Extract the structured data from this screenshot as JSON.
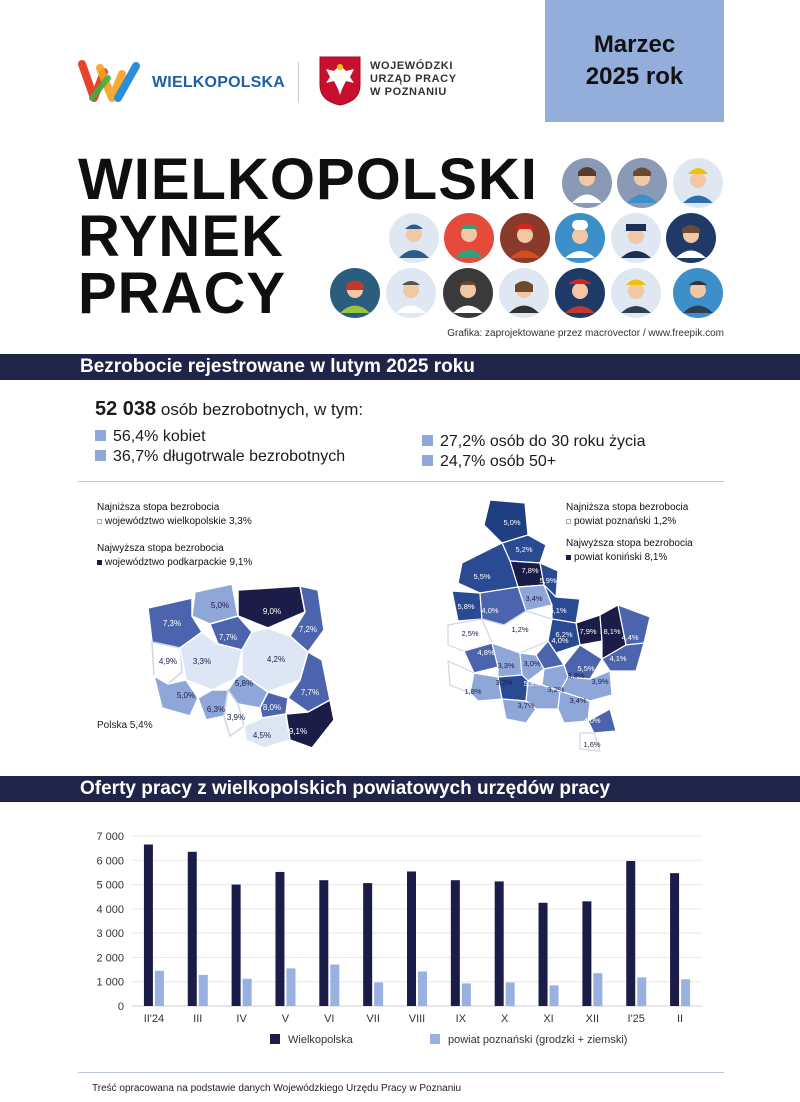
{
  "header": {
    "brand_name": "WIELKOPOLSKA",
    "office_line1": "WOJEWÓDZKI",
    "office_line2": "URZĄD PRACY",
    "office_line3": "W POZNANIU",
    "date_line1": "Marzec",
    "date_line2": "2025 rok"
  },
  "title": {
    "line1": "WIELKOPOLSKI",
    "line2": "RYNEK",
    "line3": "PRACY"
  },
  "credit": "Grafika: zaprojektowane przez macrovector / www.freepik.com",
  "section1": {
    "heading": "Bezrobocie rejestrowane w lutym 2025 roku",
    "total_value": "52 038",
    "total_text": " osób bezrobotnych, w tym:",
    "bullets_left": [
      "56,4% kobiet",
      "36,7% długotrwale bezrobotnych"
    ],
    "bullets_right": [
      "27,2% osób do 30 roku życia",
      "24,7% osób 50+"
    ]
  },
  "map_poland": {
    "lowest_title": "Najniższa stopa bezrobocia",
    "lowest_value": "województwo wielkopolskie 3,3%",
    "highest_title": "Najwyższa stopa bezrobocia",
    "highest_value": "województwo podkarpackie 9,1%",
    "country_label": "Polska 5,4%",
    "regions": [
      "5,0%",
      "9,0%",
      "7,3%",
      "7,7%",
      "7,2%",
      "4,9%",
      "3,3%",
      "4,2%",
      "5,8%",
      "5,0%",
      "7,7%",
      "6,3%",
      "8,0%",
      "3,9%",
      "4,5%",
      "9,1%"
    ]
  },
  "map_wlkp": {
    "lowest_title": "Najniższa stopa bezrobocia",
    "lowest_value": "powiat poznański 1,2%",
    "highest_title": "Najwyższa stopa bezrobocia",
    "highest_value": "powiat koniński 8,1%",
    "counties": [
      "5,0%",
      "5,2%",
      "7,8%",
      "5,5%",
      "5,9%",
      "3,4%",
      "5,8%",
      "4,0%",
      "5,1%",
      "1,2%",
      "2,5%",
      "7,9%",
      "8,1%",
      "4,4%",
      "6,2%",
      "4,0%",
      "4,8%",
      "3,3%",
      "3,0%",
      "5,5%",
      "4,1%",
      "1,8%",
      "3,8%",
      "3,2%",
      "5,3%",
      "3,2%",
      "3,9%",
      "3,4%",
      "3,7%",
      "4,0%",
      "1,6%"
    ]
  },
  "section2": {
    "heading": "Oferty pracy z wielkopolskich powiatowych urzędów pracy"
  },
  "chart_data": {
    "type": "bar",
    "categories": [
      "II'24",
      "III",
      "IV",
      "V",
      "VI",
      "VII",
      "VIII",
      "IX",
      "X",
      "XI",
      "XII",
      "I'25",
      "II"
    ],
    "series": [
      {
        "name": "Wielkopolska",
        "color": "#1b1d48",
        "values": [
          6650,
          6350,
          5000,
          5520,
          5180,
          5060,
          5540,
          5180,
          5130,
          4250,
          4310,
          5970,
          5470
        ]
      },
      {
        "name": "powiat poznański (grodzki + ziemski)",
        "color": "#98b1e0",
        "values": [
          1450,
          1280,
          1120,
          1550,
          1710,
          970,
          1420,
          930,
          970,
          850,
          1350,
          1180,
          1100
        ]
      }
    ],
    "y_ticks": [
      "0",
      "1 000",
      "2 000",
      "3 000",
      "4 000",
      "5 000",
      "6 000",
      "7 000"
    ],
    "ylim": [
      0,
      7000
    ],
    "grid": true,
    "legend_position": "bottom"
  },
  "footer": "Treść opracowana na podstawie danych Wojewódzkiego Urzędu Pracy w Poznaniu",
  "colors": {
    "band": "#1f2449",
    "date_box": "#94aedc",
    "dark_navy": "#1b1d48",
    "light_blue": "#98b1e0"
  }
}
